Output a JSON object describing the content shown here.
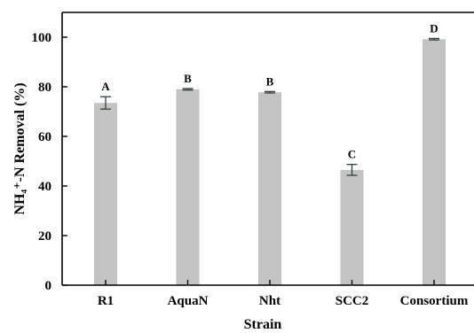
{
  "chart_data": {
    "type": "bar",
    "categories": [
      "R1",
      "AquaN",
      "Nht",
      "SCC2",
      "Consortium"
    ],
    "values": [
      73.5,
      79,
      77.8,
      46.5,
      99.2
    ],
    "errors": [
      2.5,
      0.3,
      0.3,
      2.2,
      0.3
    ],
    "significance_labels": [
      "A",
      "B",
      "B",
      "C",
      "D"
    ],
    "xlabel": "Strain",
    "ylabel": "NH₄⁺-N Removal (%)",
    "ylim": [
      0,
      110
    ],
    "yticks": [
      0,
      20,
      40,
      60,
      80,
      100
    ],
    "bar_color": "#c3c3c3",
    "error_bar_color": "#2f3f3f",
    "grid": false,
    "legend": "none"
  }
}
